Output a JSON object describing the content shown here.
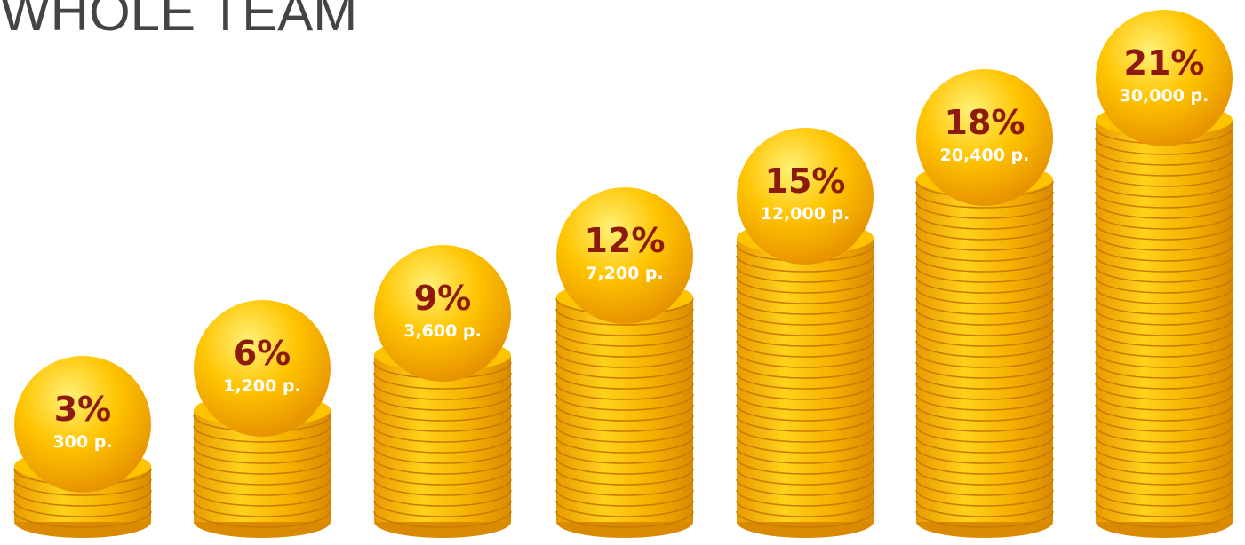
{
  "title": "WHOLE TEAM",
  "levels": [
    {
      "percent": "3%",
      "amount": "300 р."
    },
    {
      "percent": "6%",
      "amount": "1,200 р."
    },
    {
      "percent": "9%",
      "amount": "3,600 р."
    },
    {
      "percent": "12%",
      "amount": "7,200 р."
    },
    {
      "percent": "15%",
      "amount": "12,000 р."
    },
    {
      "percent": "18%",
      "amount": "20,400 р."
    },
    {
      "percent": "21%",
      "amount": "30,000 р."
    }
  ]
}
